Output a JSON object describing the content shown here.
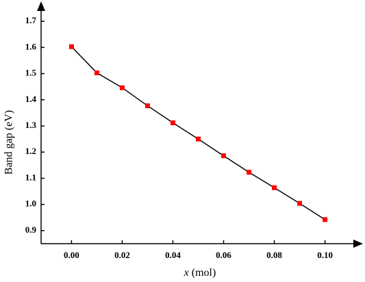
{
  "chart_data": {
    "type": "line",
    "title": "",
    "xlabel_var": "x",
    "xlabel_unit": " (mol)",
    "ylabel": "Band gap (eV)",
    "xlim": [
      -0.012,
      0.112
    ],
    "ylim": [
      0.85,
      1.75
    ],
    "xticks": [
      0.0,
      0.02,
      0.04,
      0.06,
      0.08,
      0.1
    ],
    "xtick_labels": [
      "0.00",
      "0.02",
      "0.04",
      "0.06",
      "0.08",
      "0.10"
    ],
    "yticks": [
      0.9,
      1.0,
      1.1,
      1.2,
      1.3,
      1.4,
      1.5,
      1.6,
      1.7
    ],
    "ytick_labels": [
      "0.9",
      "1.0",
      "1.1",
      "1.2",
      "1.3",
      "1.4",
      "1.5",
      "1.6",
      "1.7"
    ],
    "grid": false,
    "legend": "none",
    "line_color": "#000000",
    "marker_color": "#ff0000",
    "series": [
      {
        "x": [
          0.0,
          0.01,
          0.02,
          0.03,
          0.04,
          0.05,
          0.06,
          0.07,
          0.08,
          0.09,
          0.1
        ],
        "values": [
          1.603,
          1.503,
          1.446,
          1.377,
          1.312,
          1.25,
          1.186,
          1.123,
          1.064,
          1.004,
          0.942
        ]
      }
    ]
  }
}
